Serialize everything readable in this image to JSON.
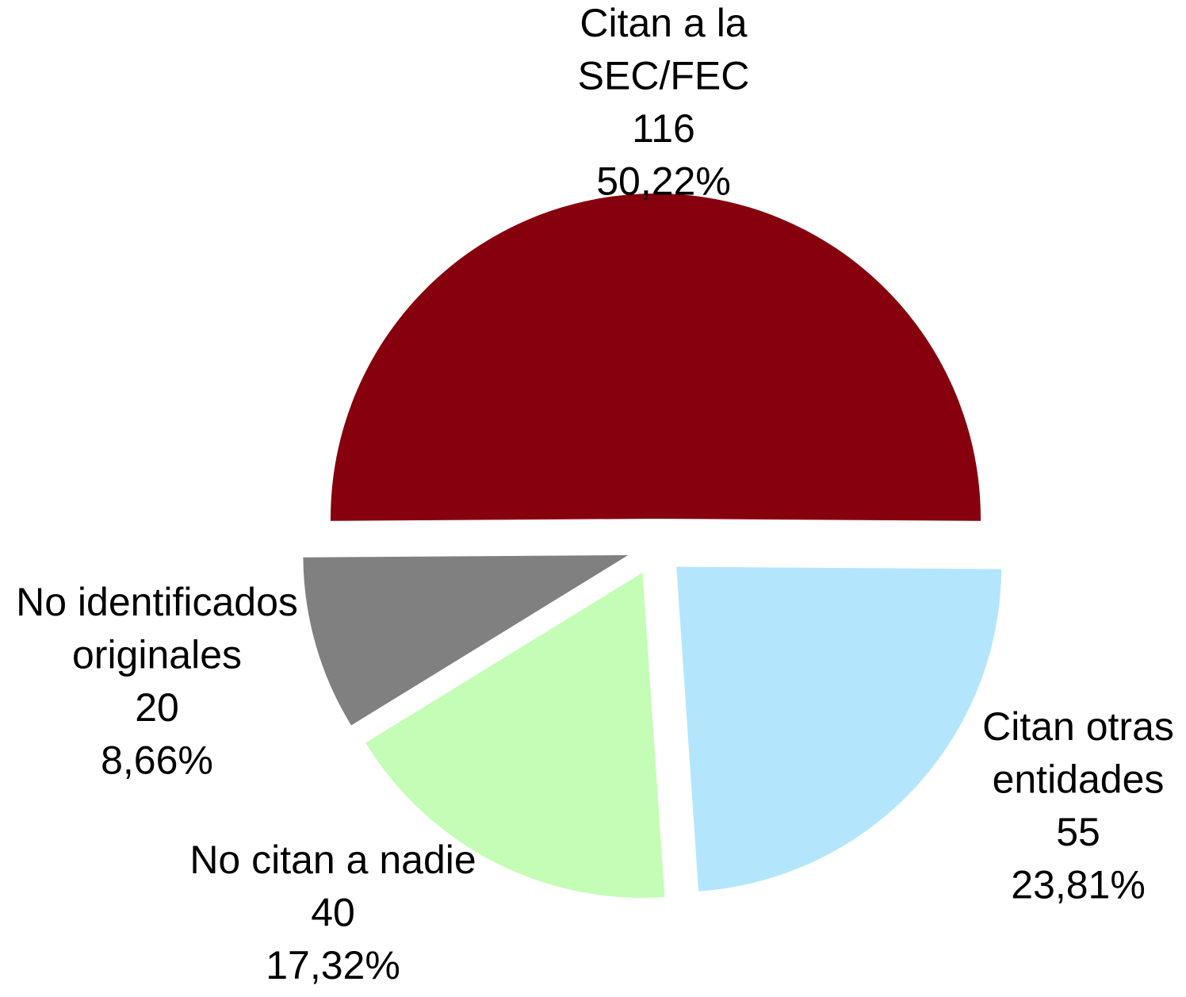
{
  "chart_data": {
    "type": "pie",
    "categories": [
      [
        "Citan a la",
        "SEC/FEC"
      ],
      [
        "Citan otras",
        "entidades"
      ],
      [
        "No citan a nadie"
      ],
      [
        "No identificados",
        "originales"
      ]
    ],
    "values": [
      116,
      55,
      40,
      20
    ],
    "percentages": [
      50.22,
      23.81,
      17.32,
      8.66
    ],
    "percentage_labels": [
      "50,22%",
      "23,81%",
      "17,32%",
      "8,66%"
    ],
    "colors": [
      "#87000e",
      "#b3e6fc",
      "#c4fdb6",
      "#808080"
    ]
  }
}
